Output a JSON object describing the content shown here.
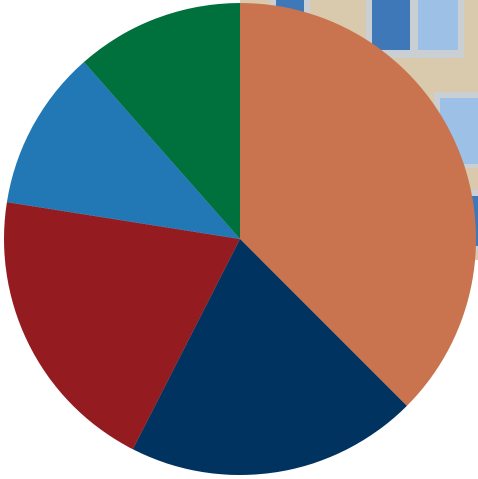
{
  "chart_data": {
    "type": "pie",
    "start": "12 o'clock",
    "direction": "clockwise",
    "slices": [
      {
        "value": 37.5,
        "color": "#c9744f"
      },
      {
        "value": 20.0,
        "color": "#00335f"
      },
      {
        "value": 20.0,
        "color": "#941c21"
      },
      {
        "value": 11.0,
        "color": "#2277b5"
      },
      {
        "value": 11.5,
        "color": "#00703c"
      }
    ]
  },
  "background": {
    "description_colors": {
      "facade": "#d9c9ad",
      "window_frame": "#c9cfd3",
      "glass": "#3f78b8",
      "glass_light": "#9cc0e6"
    }
  }
}
